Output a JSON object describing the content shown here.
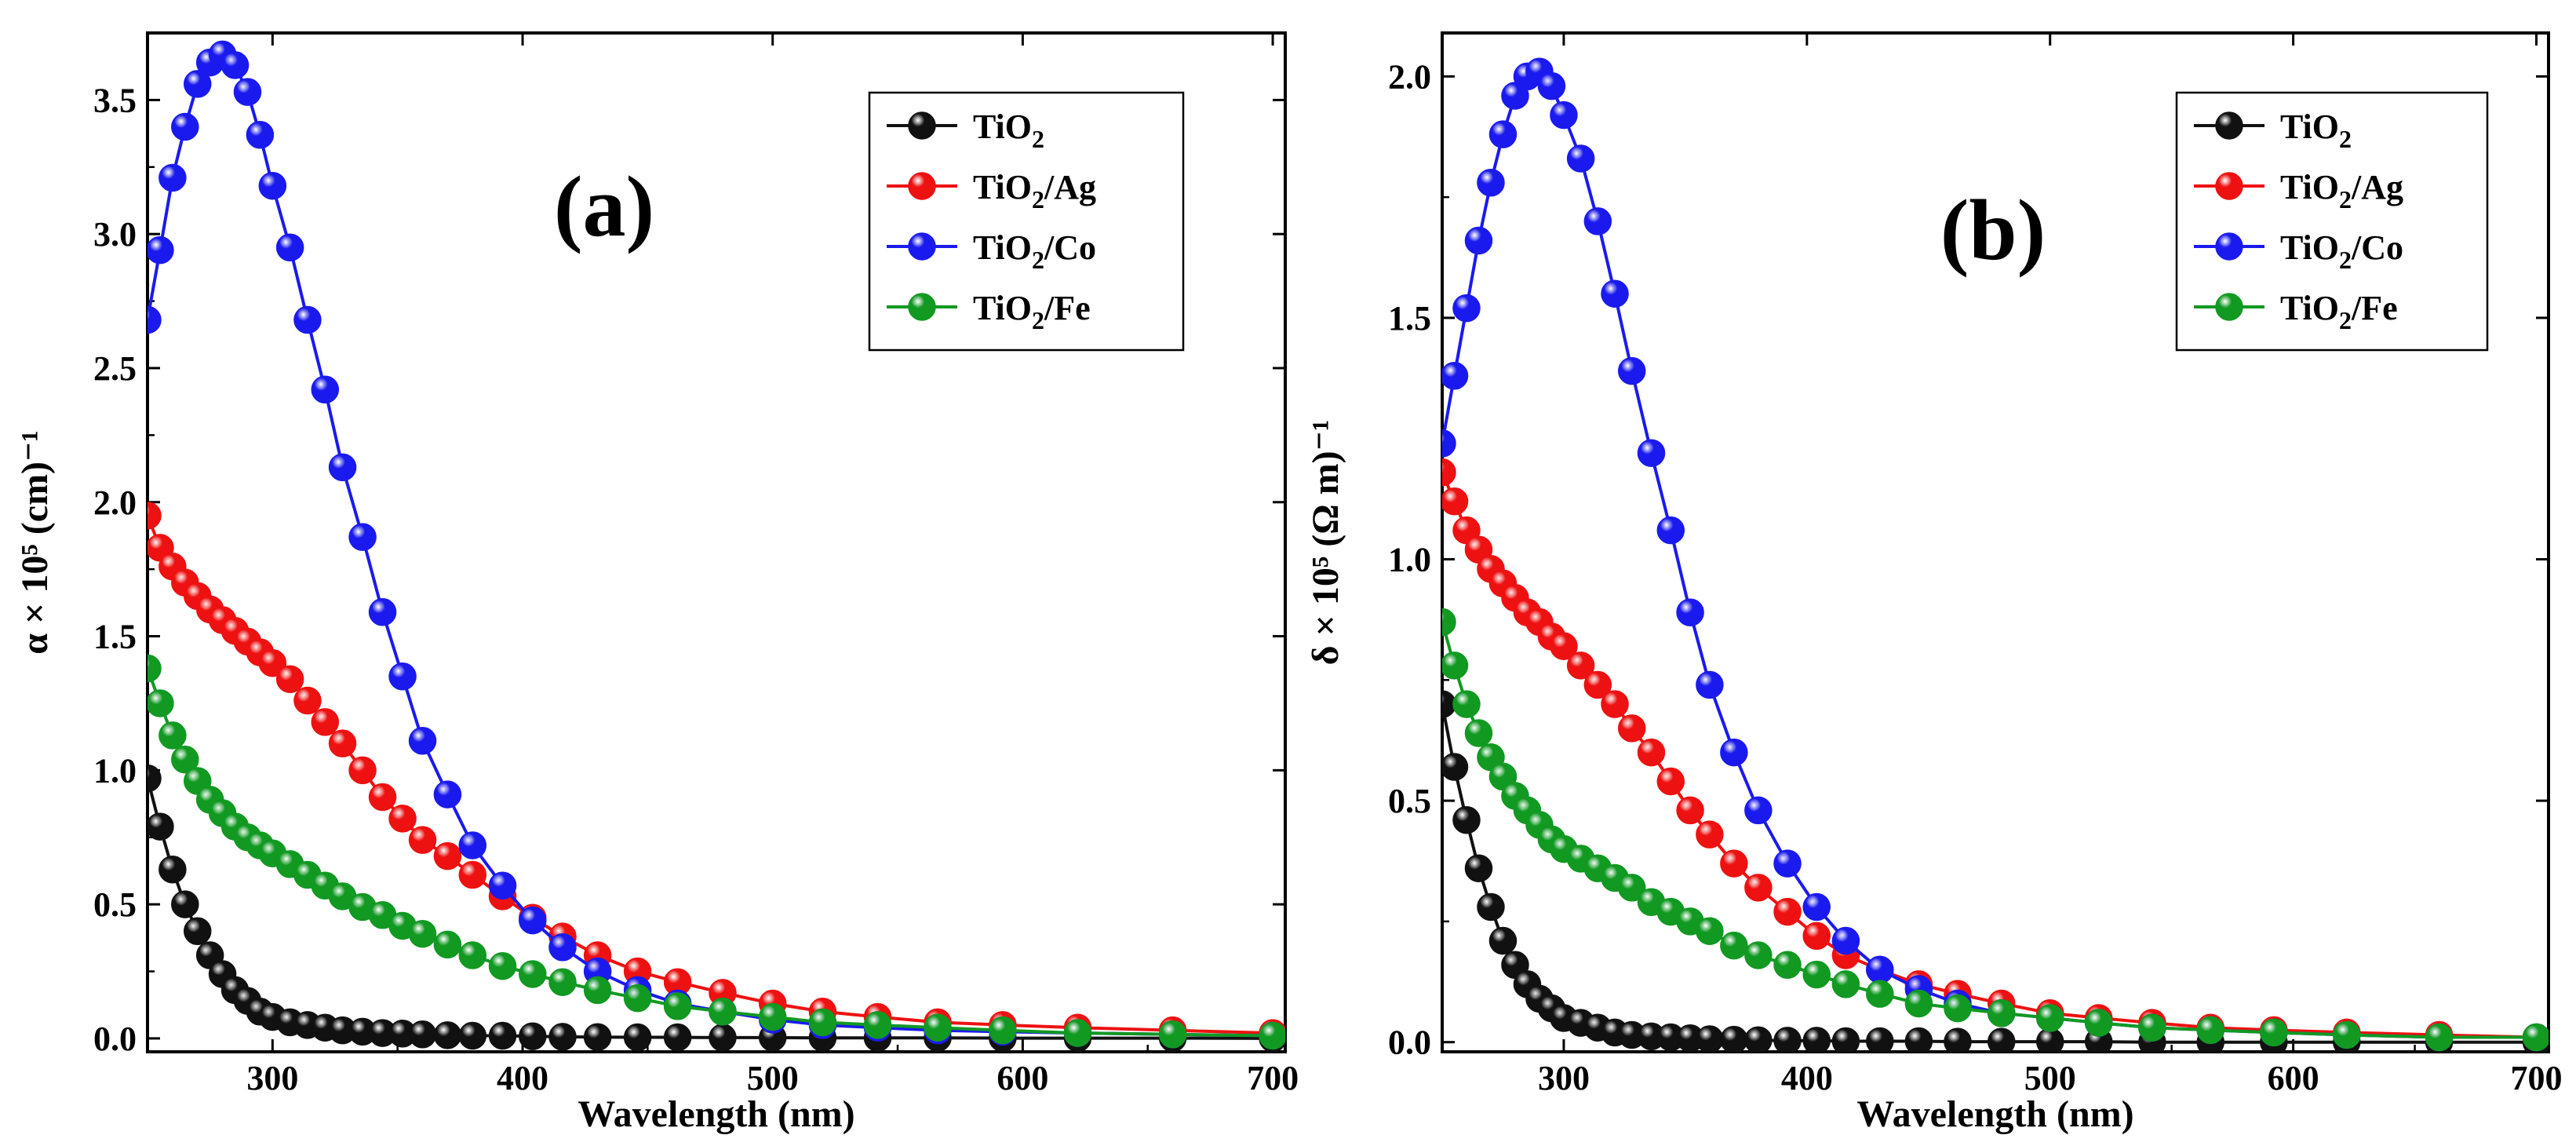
{
  "chart_data": [
    {
      "type": "line",
      "panel_label": "(a)",
      "title": "",
      "xlabel": "Wavelength (nm)",
      "ylabel": "α × 10⁵ (cm)⁻¹",
      "xlim": [
        250,
        705
      ],
      "ylim": [
        -0.05,
        3.75
      ],
      "xticks": [
        300,
        400,
        500,
        600,
        700
      ],
      "yticks": [
        0.0,
        0.5,
        1.0,
        1.5,
        2.0,
        2.5,
        3.0,
        3.5
      ],
      "tick_labels_x": [
        "300",
        "400",
        "500",
        "600",
        "700"
      ],
      "tick_labels_y": [
        "0.0",
        "0.5",
        "1.0",
        "1.5",
        "2.0",
        "2.5",
        "3.0",
        "3.5"
      ],
      "legend_position": "top-right",
      "x": [
        250,
        255,
        260,
        265,
        270,
        275,
        280,
        285,
        290,
        295,
        300,
        307,
        314,
        321,
        328,
        336,
        344,
        352,
        360,
        370,
        380,
        392,
        404,
        416,
        430,
        446,
        462,
        480,
        500,
        520,
        542,
        566,
        592,
        622,
        660,
        700
      ],
      "series": [
        {
          "name": "TiO2",
          "label_main": "TiO",
          "label_sub": "2",
          "label_rest": "",
          "color": "#111111",
          "values": [
            0.97,
            0.79,
            0.63,
            0.5,
            0.4,
            0.31,
            0.24,
            0.18,
            0.14,
            0.1,
            0.08,
            0.06,
            0.05,
            0.04,
            0.03,
            0.025,
            0.02,
            0.018,
            0.015,
            0.012,
            0.01,
            0.01,
            0.008,
            0.006,
            0.005,
            0.004,
            0.004,
            0.003,
            0.003,
            0.002,
            0.002,
            0.002,
            0.001,
            0.001,
            0.001,
            0.0
          ]
        },
        {
          "name": "TiO2/Ag",
          "label_main": "TiO",
          "label_sub": "2",
          "label_rest": "/Ag",
          "color": "#ee1111",
          "values": [
            1.95,
            1.83,
            1.76,
            1.7,
            1.65,
            1.6,
            1.56,
            1.52,
            1.48,
            1.44,
            1.4,
            1.34,
            1.26,
            1.18,
            1.1,
            1.0,
            0.9,
            0.82,
            0.74,
            0.68,
            0.61,
            0.53,
            0.45,
            0.38,
            0.31,
            0.25,
            0.21,
            0.17,
            0.13,
            0.1,
            0.08,
            0.06,
            0.05,
            0.04,
            0.03,
            0.02
          ]
        },
        {
          "name": "TiO2/Co",
          "label_main": "TiO",
          "label_sub": "2",
          "label_rest": "/Co",
          "color": "#1a1aee",
          "values": [
            2.68,
            2.94,
            3.21,
            3.4,
            3.56,
            3.64,
            3.67,
            3.63,
            3.53,
            3.37,
            3.18,
            2.95,
            2.68,
            2.42,
            2.13,
            1.87,
            1.59,
            1.35,
            1.11,
            0.91,
            0.72,
            0.57,
            0.44,
            0.34,
            0.25,
            0.18,
            0.13,
            0.1,
            0.07,
            0.05,
            0.04,
            0.03,
            0.025,
            0.02,
            0.015,
            0.01
          ]
        },
        {
          "name": "TiO2/Fe",
          "label_main": "TiO",
          "label_sub": "2",
          "label_rest": "/Fe",
          "color": "#119922",
          "values": [
            1.38,
            1.25,
            1.13,
            1.04,
            0.96,
            0.89,
            0.84,
            0.79,
            0.75,
            0.72,
            0.69,
            0.65,
            0.61,
            0.57,
            0.53,
            0.49,
            0.46,
            0.42,
            0.39,
            0.35,
            0.31,
            0.27,
            0.24,
            0.21,
            0.18,
            0.15,
            0.12,
            0.1,
            0.08,
            0.06,
            0.05,
            0.04,
            0.03,
            0.02,
            0.015,
            0.01
          ]
        }
      ]
    },
    {
      "type": "line",
      "panel_label": "(b)",
      "title": "",
      "xlabel": "Wavelength (nm)",
      "ylabel": "δ × 10⁵ (Ω m)⁻¹",
      "xlim": [
        250,
        705
      ],
      "ylim": [
        -0.02,
        2.09
      ],
      "xticks": [
        300,
        400,
        500,
        600,
        700
      ],
      "yticks": [
        0.0,
        0.5,
        1.0,
        1.5,
        2.0
      ],
      "tick_labels_x": [
        "300",
        "400",
        "500",
        "600",
        "700"
      ],
      "tick_labels_y": [
        "0.0",
        "0.5",
        "1.0",
        "1.5",
        "2.0"
      ],
      "legend_position": "top-right",
      "x": [
        250,
        255,
        260,
        265,
        270,
        275,
        280,
        285,
        290,
        295,
        300,
        307,
        314,
        321,
        328,
        336,
        344,
        352,
        360,
        370,
        380,
        392,
        404,
        416,
        430,
        446,
        462,
        480,
        500,
        520,
        542,
        566,
        592,
        622,
        660,
        700
      ],
      "series": [
        {
          "name": "TiO2",
          "label_main": "TiO",
          "label_sub": "2",
          "label_rest": "",
          "color": "#111111",
          "values": [
            0.7,
            0.57,
            0.46,
            0.36,
            0.28,
            0.21,
            0.16,
            0.12,
            0.09,
            0.07,
            0.05,
            0.04,
            0.03,
            0.02,
            0.015,
            0.012,
            0.01,
            0.008,
            0.006,
            0.005,
            0.004,
            0.003,
            0.003,
            0.002,
            0.002,
            0.002,
            0.001,
            0.001,
            0.001,
            0.001,
            0.0,
            0.0,
            0.0,
            0.0,
            0.0,
            0.0
          ]
        },
        {
          "name": "TiO2/Ag",
          "label_main": "TiO",
          "label_sub": "2",
          "label_rest": "/Ag",
          "color": "#ee1111",
          "values": [
            1.18,
            1.12,
            1.06,
            1.02,
            0.98,
            0.95,
            0.92,
            0.89,
            0.87,
            0.84,
            0.82,
            0.78,
            0.74,
            0.7,
            0.65,
            0.6,
            0.54,
            0.48,
            0.43,
            0.37,
            0.32,
            0.27,
            0.22,
            0.18,
            0.15,
            0.12,
            0.1,
            0.08,
            0.06,
            0.05,
            0.04,
            0.03,
            0.025,
            0.02,
            0.015,
            0.01
          ]
        },
        {
          "name": "TiO2/Co",
          "label_main": "TiO",
          "label_sub": "2",
          "label_rest": "/Co",
          "color": "#1a1aee",
          "values": [
            1.24,
            1.38,
            1.52,
            1.66,
            1.78,
            1.88,
            1.96,
            2.0,
            2.01,
            1.98,
            1.92,
            1.83,
            1.7,
            1.55,
            1.39,
            1.22,
            1.06,
            0.89,
            0.74,
            0.6,
            0.48,
            0.37,
            0.28,
            0.21,
            0.15,
            0.11,
            0.08,
            0.06,
            0.05,
            0.04,
            0.03,
            0.025,
            0.02,
            0.015,
            0.01,
            0.01
          ]
        },
        {
          "name": "TiO2/Fe",
          "label_main": "TiO",
          "label_sub": "2",
          "label_rest": "/Fe",
          "color": "#119922",
          "values": [
            0.87,
            0.78,
            0.7,
            0.64,
            0.59,
            0.55,
            0.51,
            0.48,
            0.45,
            0.42,
            0.4,
            0.38,
            0.36,
            0.34,
            0.32,
            0.29,
            0.27,
            0.25,
            0.23,
            0.2,
            0.18,
            0.16,
            0.14,
            0.12,
            0.1,
            0.08,
            0.07,
            0.06,
            0.05,
            0.04,
            0.03,
            0.025,
            0.02,
            0.015,
            0.01,
            0.01
          ]
        }
      ]
    }
  ]
}
